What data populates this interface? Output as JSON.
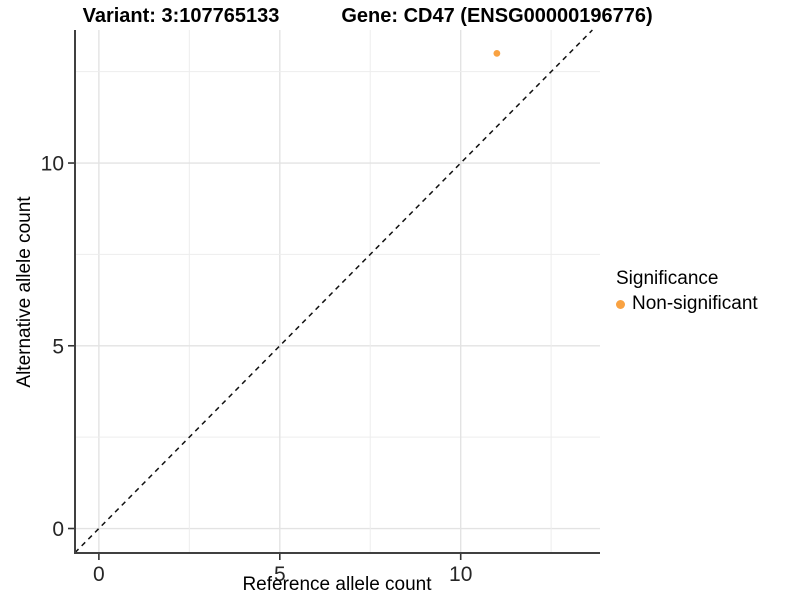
{
  "chart_data": {
    "type": "scatter",
    "titles": {
      "variant": "Variant: 3:107765133",
      "gene": "Gene: CD47 (ENSG00000196776)"
    },
    "xlabel": "Reference allele count",
    "ylabel": "Alternative allele count",
    "xlim": [
      -0.66,
      13.85
    ],
    "ylim": [
      -0.67,
      13.64
    ],
    "x_ticks": [
      0,
      5,
      10
    ],
    "y_ticks": [
      0,
      5,
      10
    ],
    "grid": true,
    "grid_interval": 2.5,
    "grid_max": 12.5,
    "points": [
      {
        "x": 11,
        "y": 13,
        "significance": "Non-significant"
      }
    ],
    "reference_line": {
      "kind": "identity y=x",
      "style": "dashed",
      "color": "#111111"
    },
    "legend": {
      "title": "Significance",
      "position": "right",
      "items": [
        {
          "label": "Non-significant",
          "color": "#F9A242"
        }
      ]
    },
    "colors": {
      "point": "#F9A242",
      "axis_line": "#404040",
      "tick": "#333333",
      "grid_major": "#e3e3e3",
      "grid_minor": "#ededed",
      "tick_label": "#262626",
      "background": "#ffffff"
    }
  }
}
